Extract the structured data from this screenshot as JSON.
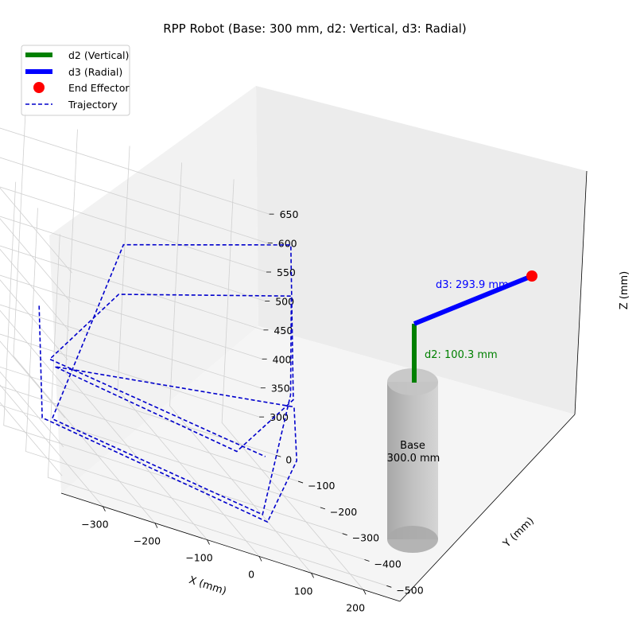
{
  "chart_data": {
    "type": "3d-line",
    "title": "RPP Robot (Base: 300 mm, d2: Vertical, d3: Radial)",
    "xlabel": "X (mm)",
    "ylabel": "Y (mm)",
    "zlabel": "Z (mm)",
    "xlim": [
      -380,
      270
    ],
    "ylim": [
      -560,
      80
    ],
    "zlim": [
      270,
      690
    ],
    "x_ticks": [
      -300,
      -200,
      -100,
      0,
      100,
      200
    ],
    "y_ticks": [
      0,
      -100,
      -200,
      -300,
      -400,
      -500
    ],
    "z_ticks": [
      300,
      350,
      400,
      450,
      500,
      550,
      600,
      650
    ],
    "grid": true,
    "legend_position": "top-left",
    "legend": [
      {
        "label": "d2 (Vertical)",
        "kind": "line",
        "color": "#008000"
      },
      {
        "label": "d3 (Radial)",
        "kind": "line",
        "color": "#0000ff"
      },
      {
        "label": "End Effector",
        "kind": "marker",
        "color": "#ff0000"
      },
      {
        "label": "Trajectory",
        "kind": "dashed",
        "color": "#0000cc"
      }
    ],
    "base": {
      "label": "Base",
      "value_label": "300.0 mm",
      "height": 300,
      "color": "#a0a0a0"
    },
    "d2": {
      "label": "d2: 100.3 mm",
      "from": [
        0,
        0,
        330
      ],
      "to": [
        0,
        0,
        430
      ],
      "color": "#008000"
    },
    "d3": {
      "label": "d3: 293.9 mm",
      "from": [
        0,
        0,
        430
      ],
      "to": [
        215,
        -200,
        430
      ],
      "color": "#0000ff"
    },
    "end_effector": {
      "x": 215,
      "y": -200,
      "z": 430,
      "color": "#ff0000"
    },
    "trajectory": {
      "color": "#0000cc",
      "points": [
        [
          -280,
          -200,
          460
        ],
        [
          -330,
          -350,
          320
        ],
        [
          30,
          -520,
          320
        ],
        [
          230,
          -180,
          330
        ],
        [
          220,
          -180,
          420
        ],
        [
          -320,
          -370,
          420
        ],
        [
          -30,
          -510,
          420
        ],
        [
          220,
          -175,
          430
        ],
        [
          190,
          -200,
          700
        ],
        [
          -250,
          -480,
          700
        ],
        [
          -320,
          -370,
          330
        ],
        [
          20,
          -520,
          330
        ],
        [
          210,
          -185,
          440
        ],
        [
          200,
          -190,
          610
        ],
        [
          -250,
          -470,
          610
        ],
        [
          -330,
          -370,
          430
        ],
        [
          20,
          -520,
          430
        ]
      ]
    }
  }
}
